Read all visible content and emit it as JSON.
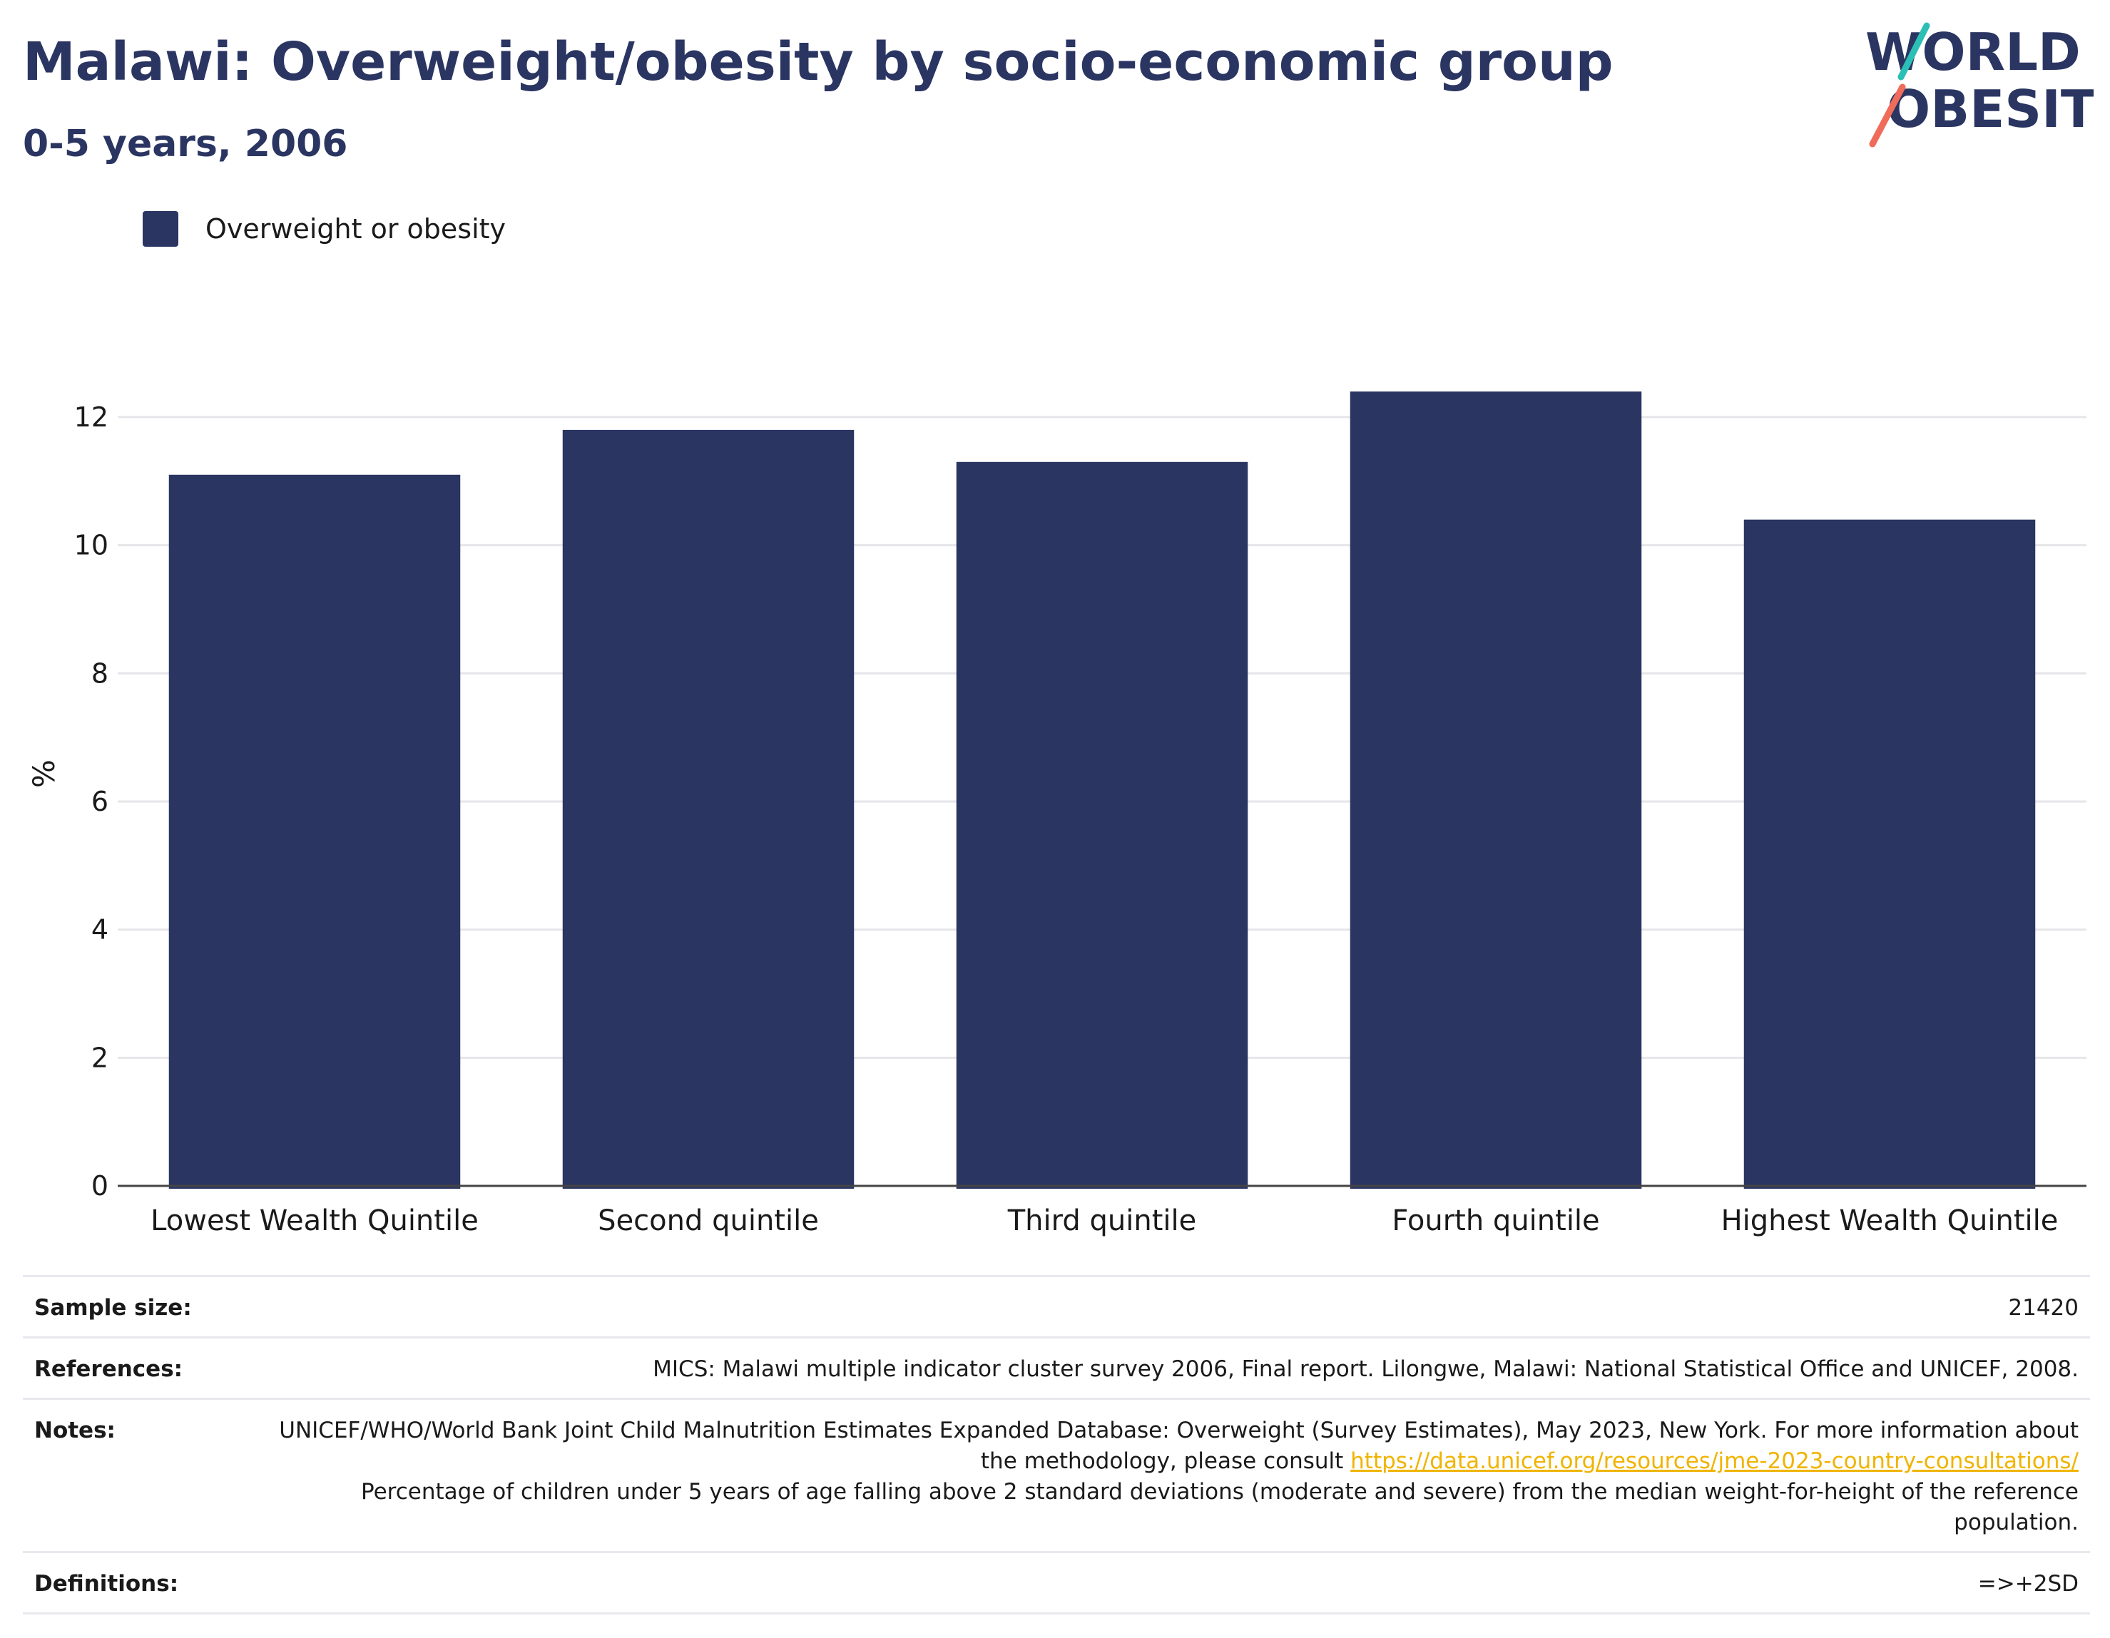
{
  "title": "Malawi: Overweight/obesity by socio-economic group",
  "subtitle": "0-5 years, 2006",
  "logo": {
    "line1": "WORLD",
    "line2": "OBESITY"
  },
  "legend": {
    "label": "Overweight or obesity"
  },
  "colors": {
    "bar": "#2a3562",
    "title": "#2a3562",
    "link": "#f0b400",
    "logo_teal": "#2bbfb5",
    "logo_coral": "#ef6b5a"
  },
  "chart_data": {
    "type": "bar",
    "categories": [
      "Lowest Wealth Quintile",
      "Second quintile",
      "Third quintile",
      "Fourth quintile",
      "Highest Wealth Quintile"
    ],
    "series": [
      {
        "name": "Overweight or obesity",
        "values": [
          11.1,
          11.8,
          11.3,
          12.4,
          10.4
        ]
      }
    ],
    "ylabel": "%",
    "ylim": [
      0,
      12.5
    ],
    "yticks": [
      0,
      2,
      4,
      6,
      8,
      10,
      12
    ],
    "grid": true,
    "legend_position": "top-left"
  },
  "info": {
    "sample_size_label": "Sample size:",
    "sample_size_value": "21420",
    "references_label": "References:",
    "references_value": "MICS: Malawi multiple indicator cluster survey 2006, Final report. Lilongwe, Malawi: National Statistical Office and UNICEF, 2008.",
    "notes_label": "Notes:",
    "notes_text1": "UNICEF/WHO/World Bank Joint Child Malnutrition Estimates Expanded Database: Overweight (Survey Estimates), May 2023, New York. For more information about the methodology, please consult ",
    "notes_link": "https://data.unicef.org/resources/jme-2023-country-consultations/",
    "notes_text2": "Percentage of children under 5 years of age falling above 2 standard deviations (moderate and severe) from the median weight-for-height of the reference population.",
    "definitions_label": "Definitions:",
    "definitions_value": "=>+2SD"
  }
}
